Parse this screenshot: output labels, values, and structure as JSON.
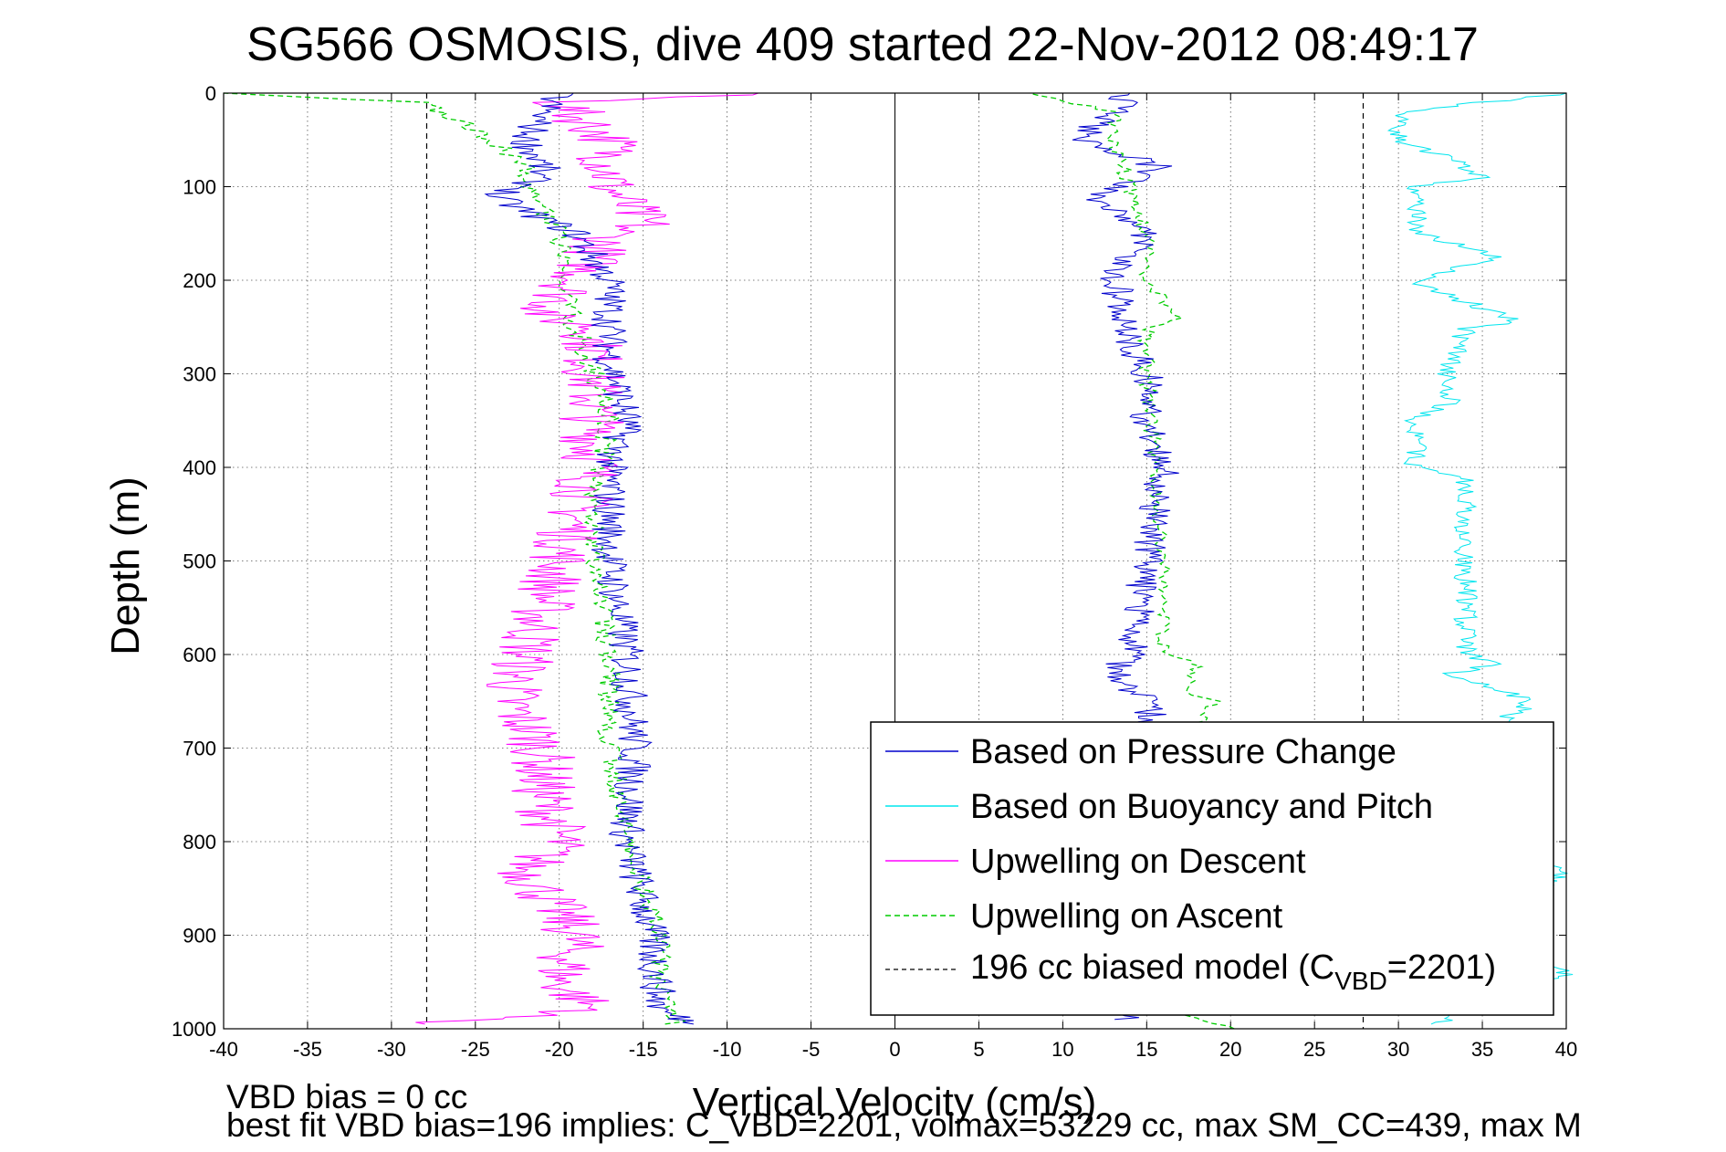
{
  "chart_data": {
    "type": "line",
    "title": "SG566 OSMOSIS, dive 409 started 22-Nov-2012 08:49:17",
    "xlabel": "Vertical Velocity (cm/s)",
    "ylabel": "Depth (m)",
    "xlim": [
      -40,
      40
    ],
    "ylim": [
      0,
      1000
    ],
    "y_reversed": true,
    "grid": true,
    "legend_position": "bottom-right",
    "x_ticks": [
      "-40",
      "-35",
      "-30",
      "-25",
      "-20",
      "-15",
      "-10",
      "-5",
      "0",
      "5",
      "10",
      "15",
      "20",
      "25",
      "30",
      "35",
      "40"
    ],
    "y_ticks": [
      "0",
      "100",
      "200",
      "300",
      "400",
      "500",
      "600",
      "700",
      "800",
      "900",
      "1000"
    ],
    "series": [
      {
        "name": "Based on Pressure Change",
        "color": "#0000cc",
        "style": "solid",
        "descent_depth": [
          0,
          20,
          50,
          80,
          100,
          110,
          150,
          200,
          250,
          280,
          350,
          400,
          500,
          600,
          700,
          800,
          900,
          980,
          995
        ],
        "descent_velocity": [
          -20,
          -21,
          -22,
          -21,
          -22,
          -24,
          -19,
          -17,
          -17,
          -17,
          -16,
          -17,
          -17,
          -16,
          -15.5,
          -16,
          -14.5,
          -14,
          -12
        ],
        "ascent_depth": [
          990,
          930,
          900,
          800,
          700,
          680,
          650,
          620,
          600,
          500,
          400,
          350,
          300,
          270,
          250,
          200,
          150,
          110,
          100,
          80,
          50,
          20,
          0
        ],
        "ascent_velocity": [
          14,
          15,
          15,
          15,
          15,
          15.5,
          15,
          13,
          14,
          15,
          16,
          15,
          15,
          14,
          14,
          13,
          15,
          12,
          13,
          16,
          11,
          13,
          14
        ]
      },
      {
        "name": "Based on Buoyancy and Pitch",
        "color": "#00e5ee",
        "style": "solid",
        "descent_depth": [],
        "descent_velocity": [],
        "ascent_depth": [
          995,
          940,
          900,
          830,
          800,
          700,
          650,
          620,
          610,
          600,
          500,
          410,
          400,
          350,
          330,
          300,
          250,
          245,
          200,
          175,
          150,
          100,
          90,
          70,
          50,
          20,
          10,
          0
        ],
        "ascent_velocity": [
          32,
          40,
          34,
          40,
          34,
          34,
          38,
          33,
          36,
          34,
          34,
          34,
          31,
          31,
          33,
          33,
          34,
          37,
          31,
          36,
          31,
          31,
          35,
          33,
          30,
          30,
          35,
          40
        ]
      },
      {
        "name": "Upwelling on Descent",
        "color": "#ff00ff",
        "style": "solid",
        "descent_depth": [
          0,
          10,
          50,
          100,
          140,
          150,
          200,
          240,
          250,
          300,
          400,
          500,
          600,
          650,
          700,
          750,
          800,
          830,
          900,
          950,
          980,
          995
        ],
        "descent_velocity": [
          -8,
          -20,
          -17,
          -17,
          -15,
          -17,
          -19,
          -21,
          -18,
          -18,
          -18,
          -20,
          -22,
          -23,
          -21,
          -21,
          -20,
          -22,
          -19,
          -20,
          -18,
          -28
        ],
        "ascent_depth": [],
        "ascent_velocity": []
      },
      {
        "name": "Upwelling on Ascent",
        "color": "#00cc00",
        "style": "dashed",
        "descent_depth": [],
        "descent_velocity": [],
        "ascent_depth": [
          995,
          950,
          900,
          850,
          800,
          700,
          600,
          500,
          450,
          400,
          350,
          300,
          250,
          200,
          150,
          100,
          80,
          50,
          30,
          10,
          0
        ],
        "ascent_velocity": [
          -13,
          -14,
          -14,
          -15,
          -16,
          -17,
          -17,
          -18,
          -18,
          -17.5,
          -17,
          -18,
          -19,
          -20,
          -20,
          -22,
          -22,
          -24,
          -26,
          -28,
          -40
        ],
        "ascent_depth_2": [
          1000,
          980,
          900,
          800,
          700,
          650,
          640,
          610,
          600,
          500,
          400,
          300,
          250,
          240,
          200,
          150,
          100,
          50,
          20,
          0
        ],
        "ascent_velocity_2": [
          20,
          16,
          16,
          16,
          17,
          19,
          17,
          18,
          16,
          16,
          15.5,
          15,
          15,
          17,
          15,
          15,
          14,
          13,
          13,
          8
        ]
      },
      {
        "name": "196 cc biased model (C_VBD=2201)",
        "color": "#000000",
        "style": "dashed",
        "x_lines": [
          -27.9,
          27.9
        ]
      }
    ],
    "legend_labels": {
      "pressure": "Based on Pressure Change",
      "buoyancy": "Based on Buoyancy and Pitch",
      "descent": "Upwelling on Descent",
      "ascent": "Upwelling on Ascent",
      "model_prefix": "196 cc biased model (C",
      "model_sub": "VBD",
      "model_suffix": "=2201)"
    }
  },
  "footer": {
    "line1": "VBD bias = 0 cc",
    "line2": "best fit VBD bias=196 implies: C_VBD=2201, volmax=53229 cc, max SM_CC=439, max M"
  }
}
